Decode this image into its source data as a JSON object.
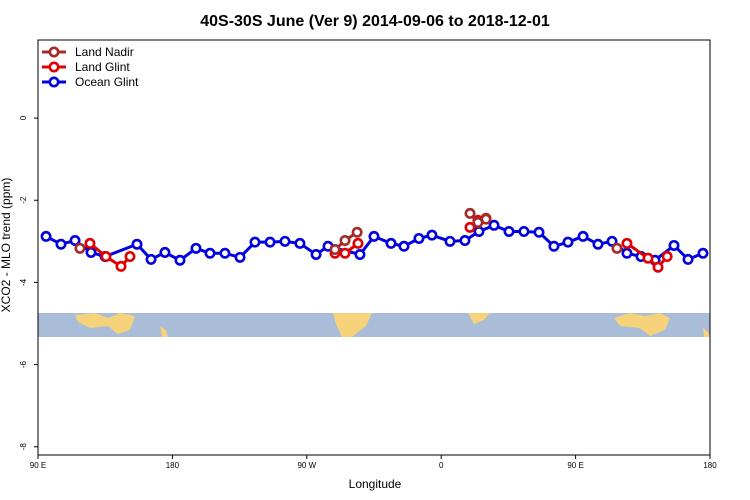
{
  "chart_data": {
    "type": "line",
    "title": "40S-30S June (Ver 9)   2014-09-06 to 2018-12-01",
    "xlabel": "Longitude",
    "ylabel": "XCO2 - MLO trend (ppm)",
    "xlim": [
      90,
      540
    ],
    "ylim": [
      -8.2,
      1.9
    ],
    "xticks": [
      {
        "value": 90,
        "label": "90 E"
      },
      {
        "value": 180,
        "label": "180"
      },
      {
        "value": 270,
        "label": "90 W"
      },
      {
        "value": 360,
        "label": "0"
      },
      {
        "value": 450,
        "label": "90 E"
      },
      {
        "value": 540,
        "label": "180"
      }
    ],
    "yticks": [
      0,
      -2,
      -4,
      -6,
      -8
    ],
    "legend": "top-left",
    "series": [
      {
        "name": "Land Nadir",
        "color": "#a52a2a",
        "x": [
          118.1,
          null,
          288.9,
          295.6,
          303.7,
          null,
          379.3,
          384.6,
          390.0,
          null,
          477.7
        ],
        "values": [
          -3.17,
          null,
          -3.2,
          -2.98,
          -2.78,
          null,
          -2.32,
          -2.54,
          -2.46,
          null,
          -3.17
        ]
      },
      {
        "name": "Land Glint",
        "color": "#e00000",
        "x": [
          124.8,
          135.5,
          145.6,
          151.6,
          null,
          288.9,
          295.6,
          304.3,
          null,
          379.3,
          384.6,
          390.0,
          null,
          484.4,
          498.5,
          505.2,
          511.3
        ],
        "values": [
          -3.05,
          -3.37,
          -3.61,
          -3.37,
          null,
          -3.29,
          -3.29,
          -3.05,
          null,
          -2.66,
          -2.49,
          -2.44,
          null,
          -3.05,
          -3.41,
          -3.63,
          -3.37
        ]
      },
      {
        "name": "Ocean Glint",
        "color": "#0000e0",
        "x": [
          95.4,
          105.4,
          114.8,
          125.5,
          134.9,
          156.3,
          165.7,
          175.0,
          185.1,
          195.8,
          205.2,
          215.2,
          225.3,
          235.3,
          245.4,
          255.4,
          265.4,
          276.2,
          284.2,
          305.6,
          315.0,
          326.4,
          335.1,
          345.1,
          353.8,
          365.9,
          375.9,
          385.3,
          395.4,
          405.4,
          415.4,
          425.5,
          435.5,
          444.9,
          455.0,
          465.0,
          474.4,
          484.4,
          493.8,
          503.2,
          515.9,
          525.3,
          535.3
        ],
        "values": [
          -2.88,
          -3.07,
          -2.98,
          -3.27,
          -3.37,
          -3.07,
          -3.44,
          -3.27,
          -3.46,
          -3.17,
          -3.29,
          -3.29,
          -3.39,
          -3.02,
          -3.02,
          -3.0,
          -3.05,
          -3.32,
          -3.12,
          -3.32,
          -2.88,
          -3.05,
          -3.12,
          -2.93,
          -2.85,
          -3.0,
          -2.98,
          -2.76,
          -2.61,
          -2.76,
          -2.76,
          -2.78,
          -3.12,
          -3.02,
          -2.88,
          -3.07,
          -3.0,
          -3.29,
          -3.37,
          -3.46,
          -3.1,
          -3.44,
          -3.29
        ]
      }
    ]
  }
}
